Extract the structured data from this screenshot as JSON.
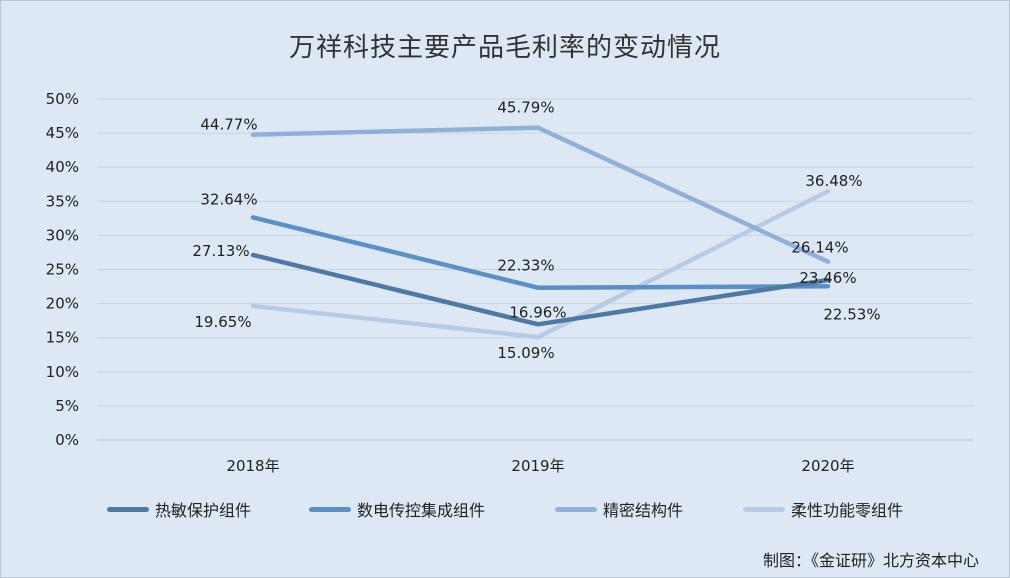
{
  "chart_data": {
    "type": "line",
    "title": "万祥科技主要产品毛利率的变动情况",
    "categories": [
      "2018年",
      "2019年",
      "2020年"
    ],
    "y_ticks": [
      "0%",
      "5%",
      "10%",
      "15%",
      "20%",
      "25%",
      "30%",
      "35%",
      "40%",
      "45%",
      "50%"
    ],
    "ylim": [
      0,
      50
    ],
    "grid": true,
    "legend_position": "bottom",
    "series": [
      {
        "name": "热敏保护组件",
        "values": [
          27.13,
          16.96,
          23.46
        ],
        "labels": [
          "27.13%",
          "16.96%",
          "23.46%"
        ],
        "color": "#4e79a7"
      },
      {
        "name": "数电传控集成组件",
        "values": [
          32.64,
          22.33,
          22.53
        ],
        "labels": [
          "32.64%",
          "22.33%",
          "22.53%"
        ],
        "color": "#5b8fc7"
      },
      {
        "name": "精密结构件",
        "values": [
          44.77,
          45.79,
          26.14
        ],
        "labels": [
          "44.77%",
          "45.79%",
          "26.14%"
        ],
        "color": "#8fb0d9"
      },
      {
        "name": "柔性功能零组件",
        "values": [
          19.65,
          15.09,
          36.48
        ],
        "labels": [
          "19.65%",
          "15.09%",
          "36.48%"
        ],
        "color": "#b6cbe6"
      }
    ],
    "credit": "制图：《金证研》北方资本中心"
  }
}
